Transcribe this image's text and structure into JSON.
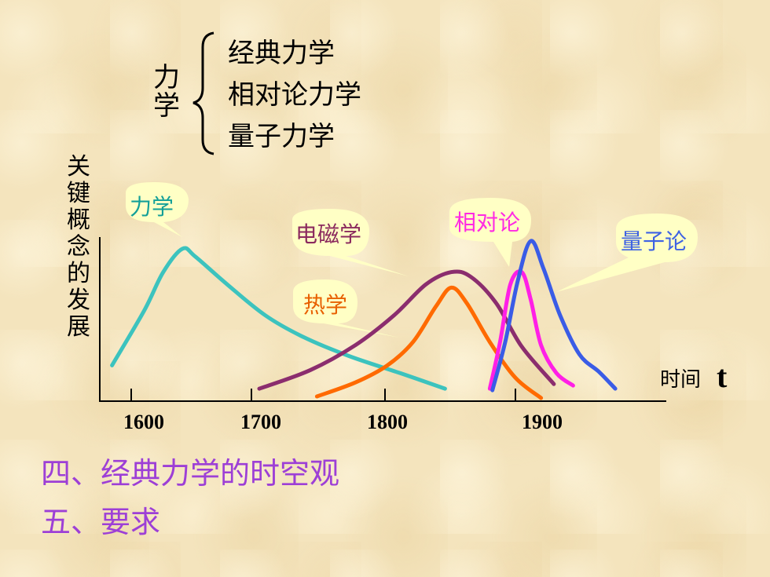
{
  "hierarchy": {
    "root": "力学",
    "branches": [
      "经典力学",
      "相对论力学",
      "量子力学"
    ]
  },
  "chart_data": {
    "type": "line",
    "ylabel": "关键概念的发展",
    "xlabel": "时间",
    "xlabel_symbol": "t",
    "x_ticks": [
      1600,
      1700,
      1800,
      1900
    ],
    "xlim": [
      1565,
      1990
    ],
    "ylim": [
      0,
      1
    ],
    "series": [
      {
        "name": "力学",
        "color": "#3cc3be",
        "points": [
          [
            1585,
            0.2
          ],
          [
            1610,
            0.55
          ],
          [
            1625,
            0.8
          ],
          [
            1640,
            0.95
          ],
          [
            1650,
            0.9
          ],
          [
            1675,
            0.72
          ],
          [
            1705,
            0.52
          ],
          [
            1735,
            0.38
          ],
          [
            1770,
            0.26
          ],
          [
            1810,
            0.15
          ],
          [
            1845,
            0.05
          ]
        ]
      },
      {
        "name": "电磁学",
        "color": "#8b2d6e",
        "points": [
          [
            1700,
            0.05
          ],
          [
            1740,
            0.17
          ],
          [
            1775,
            0.33
          ],
          [
            1805,
            0.52
          ],
          [
            1830,
            0.72
          ],
          [
            1850,
            0.8
          ],
          [
            1865,
            0.77
          ],
          [
            1885,
            0.6
          ],
          [
            1905,
            0.32
          ],
          [
            1930,
            0.08
          ]
        ]
      },
      {
        "name": "热学",
        "color": "#ff6a00",
        "points": [
          [
            1745,
            0.0
          ],
          [
            1775,
            0.09
          ],
          [
            1800,
            0.2
          ],
          [
            1820,
            0.35
          ],
          [
            1838,
            0.58
          ],
          [
            1850,
            0.7
          ],
          [
            1862,
            0.6
          ],
          [
            1880,
            0.35
          ],
          [
            1900,
            0.12
          ],
          [
            1920,
            -0.01
          ]
        ]
      },
      {
        "name": "相对论",
        "color": "#ff1fe6",
        "points": [
          [
            1880,
            0.05
          ],
          [
            1888,
            0.35
          ],
          [
            1896,
            0.72
          ],
          [
            1905,
            0.8
          ],
          [
            1912,
            0.62
          ],
          [
            1920,
            0.33
          ],
          [
            1932,
            0.15
          ],
          [
            1945,
            0.07
          ]
        ]
      },
      {
        "name": "量子论",
        "color": "#3a5ce6",
        "points": [
          [
            1882,
            0.04
          ],
          [
            1892,
            0.35
          ],
          [
            1902,
            0.75
          ],
          [
            1912,
            1.0
          ],
          [
            1922,
            0.82
          ],
          [
            1935,
            0.52
          ],
          [
            1950,
            0.27
          ],
          [
            1965,
            0.16
          ],
          [
            1978,
            0.05
          ]
        ]
      }
    ],
    "labels": [
      {
        "name": "力学",
        "color": "#139f98"
      },
      {
        "name": "电磁学",
        "color": "#8b2a5e"
      },
      {
        "name": "热学",
        "color": "#e86000"
      },
      {
        "name": "相对论",
        "color": "#ff2ae3"
      },
      {
        "name": "量子论",
        "color": "#3e62e3"
      }
    ]
  },
  "topics": [
    "四、经典力学的时空观",
    "五、要求"
  ]
}
